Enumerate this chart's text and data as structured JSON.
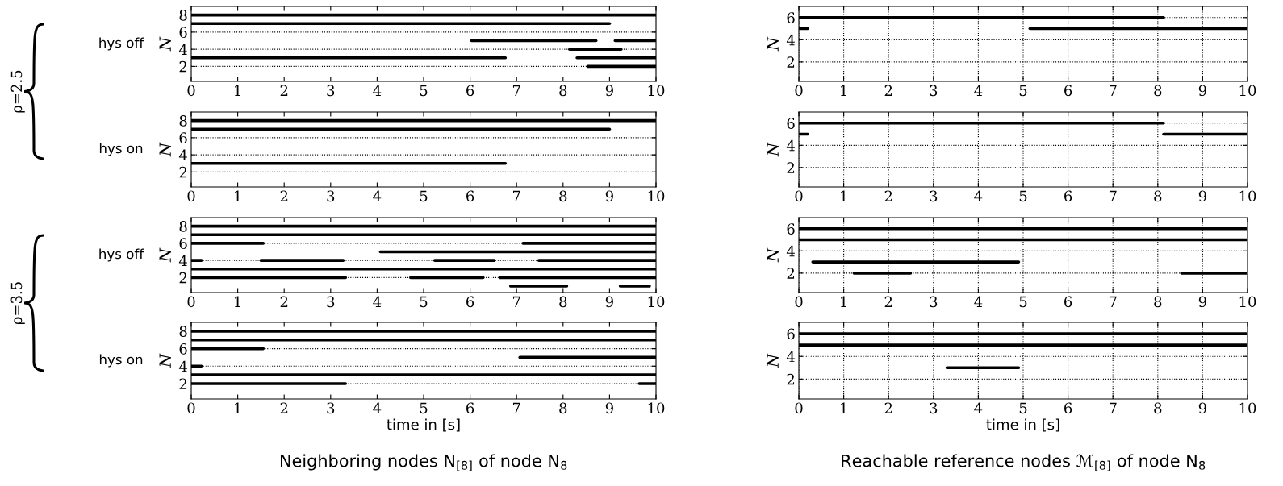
{
  "chart_data": [
    {
      "type": "line",
      "ylabel": "N",
      "annotations": [
        "hys off",
        "ρ=2.5"
      ],
      "xlim": [
        0,
        10
      ],
      "xticks": [
        0,
        1,
        2,
        3,
        4,
        5,
        6,
        7,
        8,
        9,
        10
      ],
      "ylim": [
        0.25,
        9
      ],
      "yticks": [
        2,
        4,
        6,
        8
      ],
      "grid": "y",
      "series": [
        {
          "color": "#000000",
          "x": [
            0,
            10
          ],
          "values": [
            8,
            8
          ]
        },
        {
          "color": "#000000",
          "x": [
            0,
            9.0
          ],
          "values": [
            7,
            7
          ]
        },
        {
          "color": "#000000",
          "x": [
            6.03,
            8.71
          ],
          "values": [
            5,
            5
          ]
        },
        {
          "color": "#000000",
          "x": [
            9.12,
            10
          ],
          "values": [
            5,
            5
          ]
        },
        {
          "color": "#000000",
          "x": [
            8.14,
            9.25
          ],
          "values": [
            4,
            4
          ]
        },
        {
          "color": "#000000",
          "x": [
            0,
            6.76
          ],
          "values": [
            3,
            3
          ]
        },
        {
          "color": "#000000",
          "x": [
            8.3,
            10
          ],
          "values": [
            3,
            3
          ]
        },
        {
          "color": "#000000",
          "x": [
            8.53,
            10
          ],
          "values": [
            2,
            2
          ]
        }
      ]
    },
    {
      "type": "line",
      "ylabel": "N",
      "xlim": [
        0,
        10
      ],
      "xticks": [
        0,
        1,
        2,
        3,
        4,
        5,
        6,
        7,
        8,
        9,
        10
      ],
      "ylim": [
        0.25,
        7
      ],
      "yticks": [
        2,
        4,
        6
      ],
      "grid": true,
      "series": [
        {
          "color": "#000000",
          "x": [
            0,
            8.13
          ],
          "values": [
            6,
            6
          ]
        },
        {
          "color": "#000000",
          "x": [
            0,
            0.2
          ],
          "values": [
            5,
            5
          ]
        },
        {
          "color": "#000000",
          "x": [
            5.15,
            10
          ],
          "values": [
            5,
            5
          ]
        }
      ]
    },
    {
      "type": "line",
      "ylabel": "N",
      "annotations": [
        "hys on"
      ],
      "xlim": [
        0,
        10
      ],
      "xticks": [
        0,
        1,
        2,
        3,
        4,
        5,
        6,
        7,
        8,
        9,
        10
      ],
      "ylim": [
        0.25,
        9
      ],
      "yticks": [
        2,
        4,
        6,
        8
      ],
      "grid": "y",
      "series": [
        {
          "color": "#000000",
          "x": [
            0,
            10
          ],
          "values": [
            8,
            8
          ]
        },
        {
          "color": "#000000",
          "x": [
            0,
            9.0
          ],
          "values": [
            7,
            7
          ]
        },
        {
          "color": "#000000",
          "x": [
            0,
            6.76
          ],
          "values": [
            3,
            3
          ]
        }
      ]
    },
    {
      "type": "line",
      "ylabel": "N",
      "xlim": [
        0,
        10
      ],
      "xticks": [
        0,
        1,
        2,
        3,
        4,
        5,
        6,
        7,
        8,
        9,
        10
      ],
      "ylim": [
        0.25,
        7
      ],
      "yticks": [
        2,
        4,
        6
      ],
      "grid": true,
      "series": [
        {
          "color": "#000000",
          "x": [
            0,
            8.13
          ],
          "values": [
            6,
            6
          ]
        },
        {
          "color": "#000000",
          "x": [
            0,
            0.2
          ],
          "values": [
            5,
            5
          ]
        },
        {
          "color": "#000000",
          "x": [
            8.13,
            10
          ],
          "values": [
            5,
            5
          ]
        }
      ]
    },
    {
      "type": "line",
      "ylabel": "N",
      "annotations": [
        "hys off",
        "ρ=3.5"
      ],
      "xlim": [
        0,
        10
      ],
      "xticks": [
        0,
        1,
        2,
        3,
        4,
        5,
        6,
        7,
        8,
        9,
        10
      ],
      "ylim": [
        0.25,
        9
      ],
      "yticks": [
        2,
        4,
        6,
        8
      ],
      "grid": "y",
      "series": [
        {
          "color": "#000000",
          "x": [
            0,
            10
          ],
          "values": [
            8,
            8
          ]
        },
        {
          "color": "#000000",
          "x": [
            0,
            10
          ],
          "values": [
            7,
            7
          ]
        },
        {
          "color": "#000000",
          "x": [
            0,
            1.55
          ],
          "values": [
            6,
            6
          ]
        },
        {
          "color": "#000000",
          "x": [
            7.14,
            10
          ],
          "values": [
            6,
            6
          ]
        },
        {
          "color": "#000000",
          "x": [
            4.07,
            10
          ],
          "values": [
            5,
            5
          ]
        },
        {
          "color": "#000000",
          "x": [
            0,
            0.22
          ],
          "values": [
            4,
            4
          ]
        },
        {
          "color": "#000000",
          "x": [
            1.5,
            3.27
          ],
          "values": [
            4,
            4
          ]
        },
        {
          "color": "#000000",
          "x": [
            5.24,
            6.52
          ],
          "values": [
            4,
            4
          ]
        },
        {
          "color": "#000000",
          "x": [
            7.48,
            10
          ],
          "values": [
            4,
            4
          ]
        },
        {
          "color": "#000000",
          "x": [
            0,
            10
          ],
          "values": [
            3,
            3
          ]
        },
        {
          "color": "#000000",
          "x": [
            0,
            3.32
          ],
          "values": [
            2,
            2
          ]
        },
        {
          "color": "#000000",
          "x": [
            4.72,
            6.28
          ],
          "values": [
            2,
            2
          ]
        },
        {
          "color": "#000000",
          "x": [
            6.64,
            10
          ],
          "values": [
            2,
            2
          ]
        },
        {
          "color": "#000000",
          "x": [
            6.87,
            8.08
          ],
          "values": [
            1,
            1
          ]
        },
        {
          "color": "#000000",
          "x": [
            9.23,
            9.86
          ],
          "values": [
            1,
            1
          ]
        }
      ]
    },
    {
      "type": "line",
      "ylabel": "N",
      "xlim": [
        0,
        10
      ],
      "xticks": [
        0,
        1,
        2,
        3,
        4,
        5,
        6,
        7,
        8,
        9,
        10
      ],
      "ylim": [
        0.25,
        7
      ],
      "yticks": [
        2,
        4,
        6
      ],
      "grid": true,
      "series": [
        {
          "color": "#000000",
          "x": [
            0,
            10
          ],
          "values": [
            6,
            6
          ]
        },
        {
          "color": "#000000",
          "x": [
            0,
            10
          ],
          "values": [
            5,
            5
          ]
        },
        {
          "color": "#000000",
          "x": [
            0.31,
            4.9
          ],
          "values": [
            3,
            3
          ]
        },
        {
          "color": "#000000",
          "x": [
            1.23,
            2.49
          ],
          "values": [
            2,
            2
          ]
        },
        {
          "color": "#000000",
          "x": [
            8.53,
            10
          ],
          "values": [
            2,
            2
          ]
        }
      ]
    },
    {
      "type": "line",
      "ylabel": "N",
      "xlabel": "time in [s]",
      "annotations": [
        "hys on",
        "Neighboring nodes N$_{[8]}$ of node N$_{8}$"
      ],
      "xlim": [
        0,
        10
      ],
      "xticks": [
        0,
        1,
        2,
        3,
        4,
        5,
        6,
        7,
        8,
        9,
        10
      ],
      "ylim": [
        0.25,
        9
      ],
      "yticks": [
        2,
        4,
        6,
        8
      ],
      "grid": "y",
      "series": [
        {
          "color": "#000000",
          "x": [
            0,
            10
          ],
          "values": [
            8,
            8
          ]
        },
        {
          "color": "#000000",
          "x": [
            0,
            10
          ],
          "values": [
            7,
            7
          ]
        },
        {
          "color": "#000000",
          "x": [
            0,
            1.55
          ],
          "values": [
            6,
            6
          ]
        },
        {
          "color": "#000000",
          "x": [
            7.07,
            10
          ],
          "values": [
            5,
            5
          ]
        },
        {
          "color": "#000000",
          "x": [
            0,
            0.22
          ],
          "values": [
            4,
            4
          ]
        },
        {
          "color": "#000000",
          "x": [
            0,
            10
          ],
          "values": [
            3,
            3
          ]
        },
        {
          "color": "#000000",
          "x": [
            0,
            3.32
          ],
          "values": [
            2,
            2
          ]
        },
        {
          "color": "#000000",
          "x": [
            9.64,
            10
          ],
          "values": [
            2,
            2
          ]
        }
      ]
    },
    {
      "type": "line",
      "ylabel": "N",
      "xlabel": "time in [s]",
      "annotations": [
        "Reachable reference nodes ℳ$_{[8]}$ of node N$_{8}$"
      ],
      "xlim": [
        0,
        10
      ],
      "xticks": [
        0,
        1,
        2,
        3,
        4,
        5,
        6,
        7,
        8,
        9,
        10
      ],
      "ylim": [
        0.25,
        7
      ],
      "yticks": [
        2,
        4,
        6
      ],
      "grid": true,
      "series": [
        {
          "color": "#000000",
          "x": [
            0,
            10
          ],
          "values": [
            6,
            6
          ]
        },
        {
          "color": "#000000",
          "x": [
            0,
            10
          ],
          "values": [
            5,
            5
          ]
        },
        {
          "color": "#000000",
          "x": [
            3.3,
            4.9
          ],
          "values": [
            3,
            3
          ]
        }
      ]
    }
  ]
}
